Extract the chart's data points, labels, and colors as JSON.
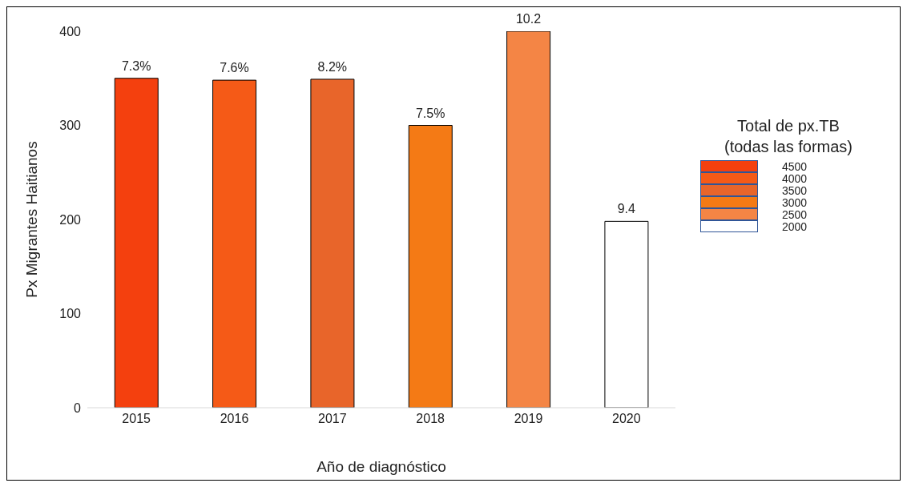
{
  "chart_data": {
    "type": "bar",
    "xlabel": "Año de diagnóstico",
    "ylabel": "Px Migrantes Haitianos",
    "categories": [
      "2015",
      "2016",
      "2017",
      "2018",
      "2019",
      "2020"
    ],
    "values": [
      350,
      348,
      349,
      300,
      400,
      198
    ],
    "colors": [
      "#f4400e",
      "#f55a17",
      "#e8652a",
      "#f47a15",
      "#f48545",
      "#ffffff"
    ],
    "annotations": [
      {
        "text": "7.3%",
        "x": "2015",
        "y": 350
      },
      {
        "text": "7.6%",
        "x": "2016",
        "y": 348
      },
      {
        "text": "8.2%",
        "x": "2017",
        "y": 349
      },
      {
        "text": "7.5%",
        "x": "2018",
        "y": 300
      },
      {
        "text": "10.2",
        "x": "2019",
        "y": 400
      },
      {
        "text": "9.4",
        "x": "2020",
        "y": 198
      }
    ],
    "ylim": [
      0,
      400
    ],
    "yticks": [
      0,
      100,
      200,
      300,
      400
    ],
    "clabel": "Total de px.TB (todas las formas)",
    "cticks": [
      4500,
      4000,
      3500,
      3000,
      2500,
      2000
    ]
  }
}
